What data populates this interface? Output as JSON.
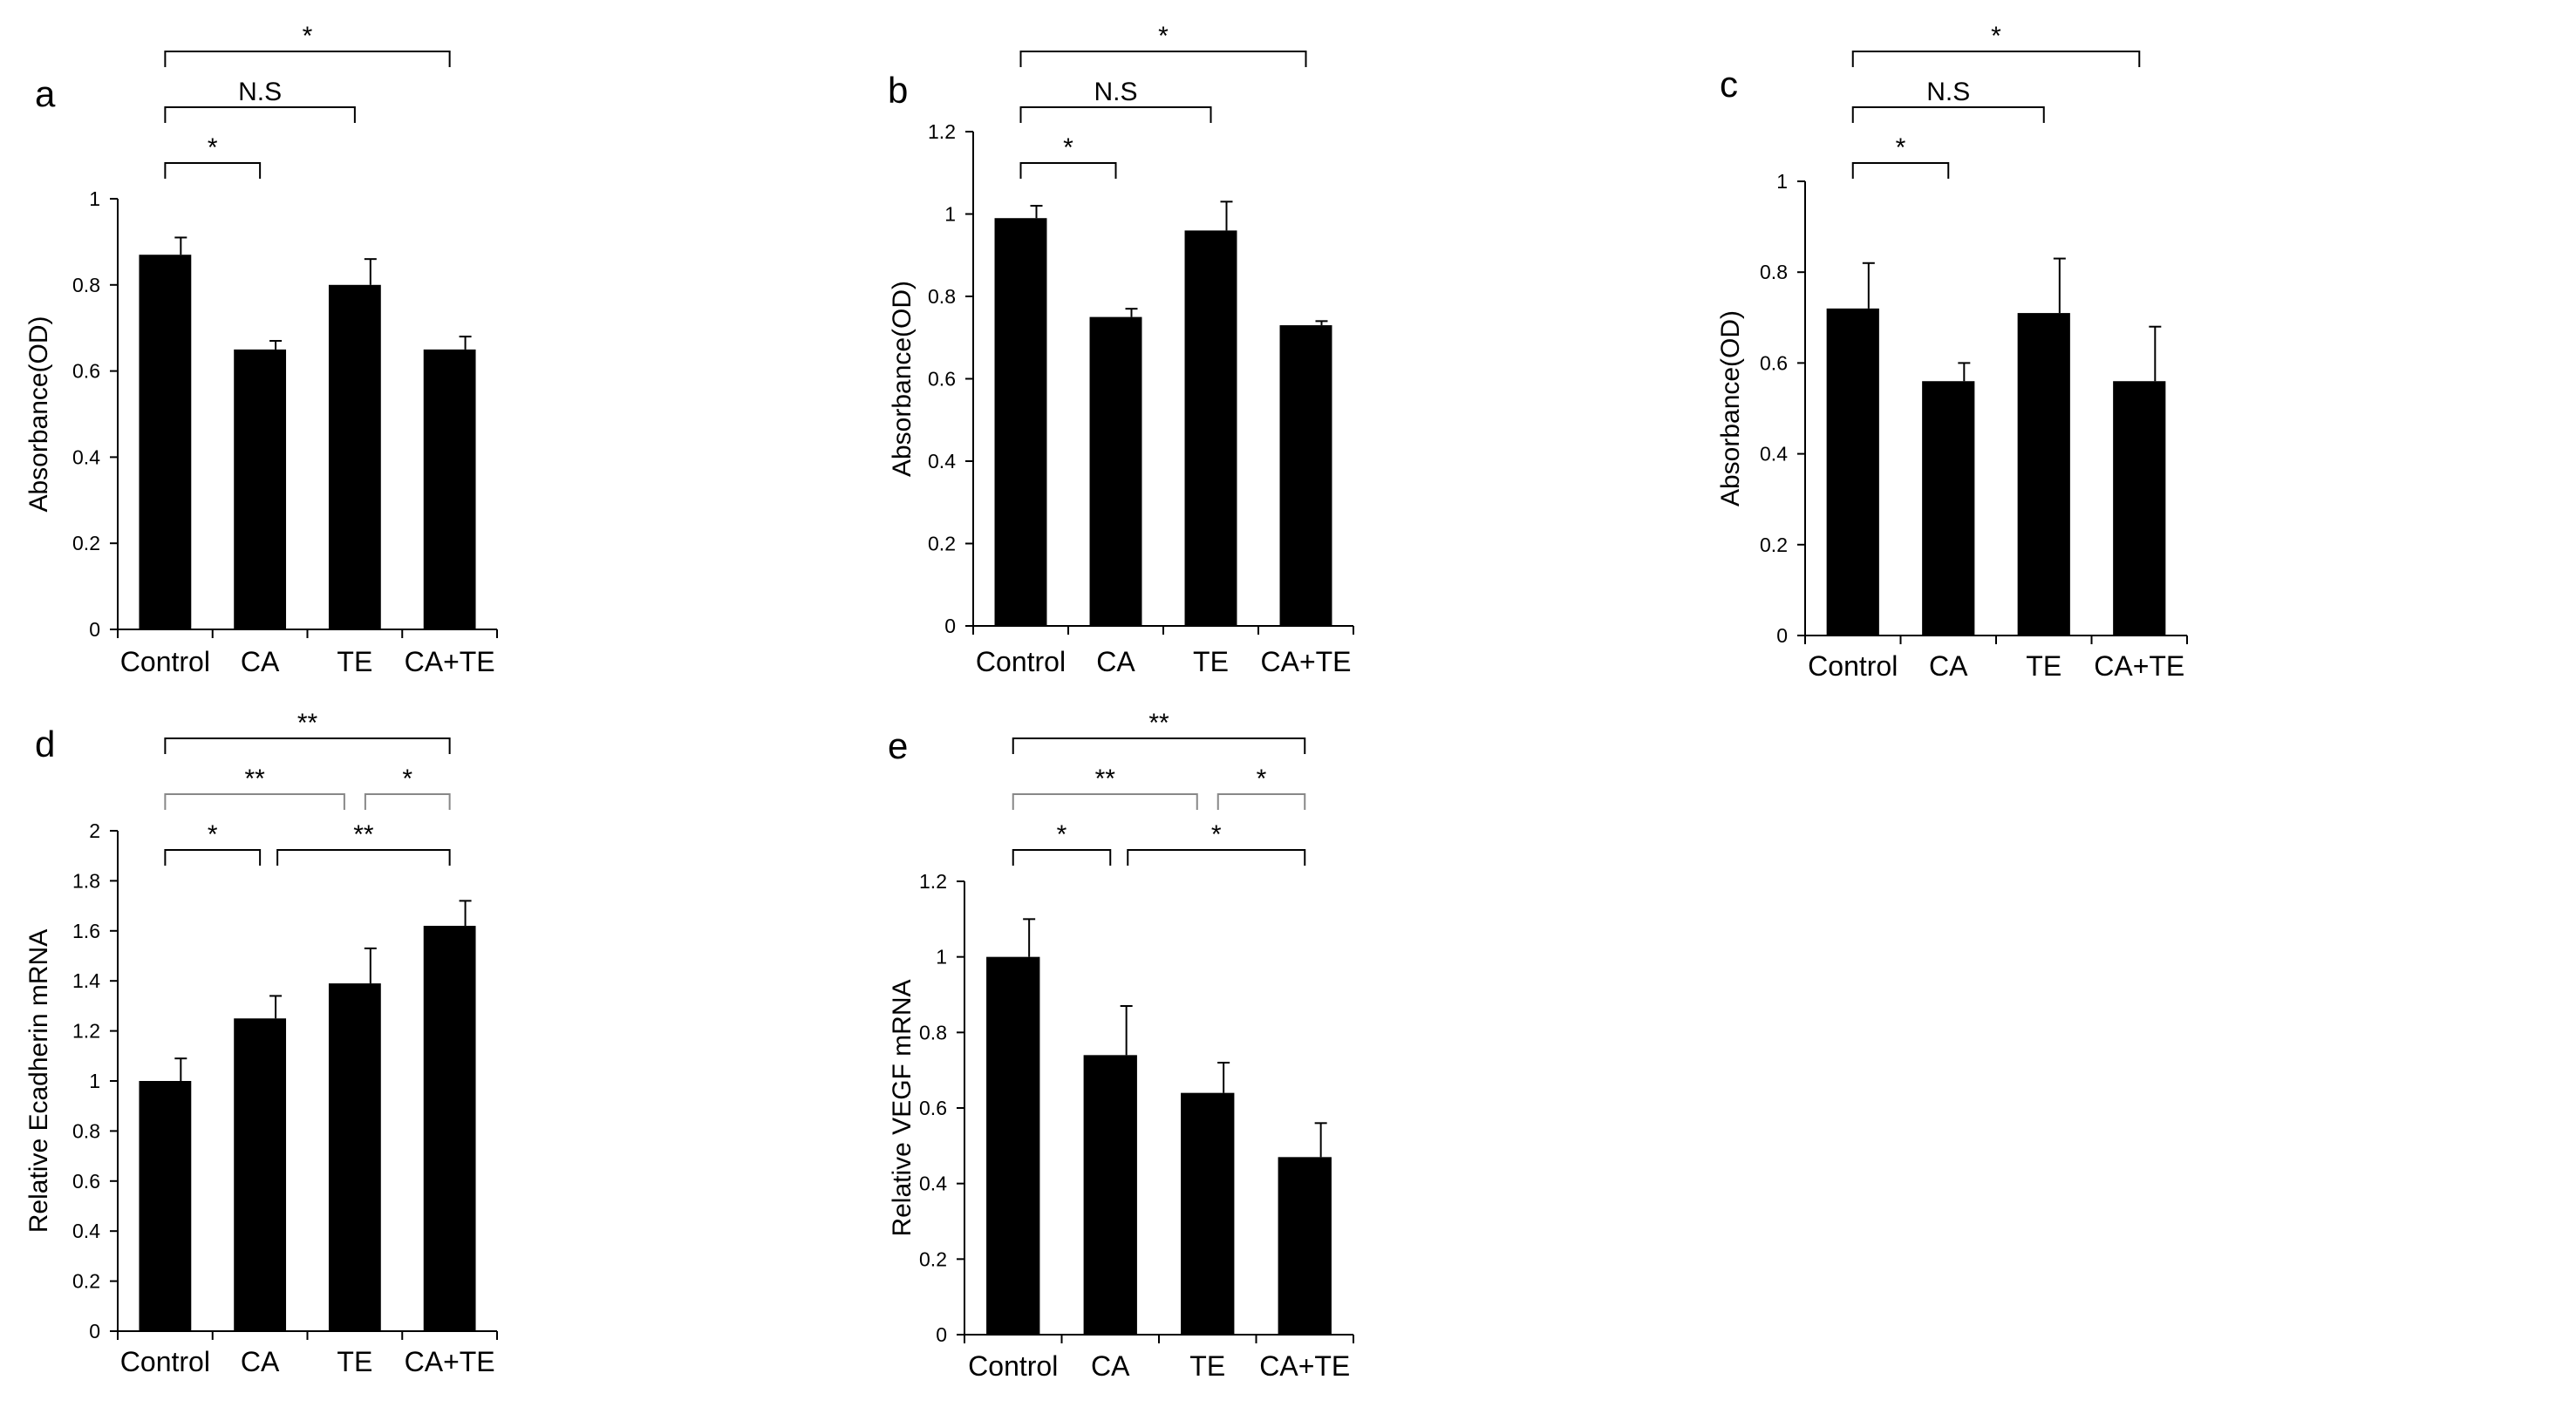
{
  "chart_data": [
    {
      "panel": "a",
      "type": "bar",
      "categories": [
        "Control",
        "CA",
        "TE",
        "CA+TE"
      ],
      "values": [
        0.87,
        0.65,
        0.8,
        0.65
      ],
      "errors": [
        0.04,
        0.02,
        0.06,
        0.03
      ],
      "ylabel": "Absorbance(OD)",
      "ylim": [
        0,
        1
      ],
      "yticks": [
        0,
        0.2,
        0.4,
        0.6,
        0.8,
        1
      ],
      "ytick_labels": [
        "0",
        "0.2",
        "0.4",
        "0.6",
        "0.8",
        "1"
      ],
      "significance": [
        {
          "from": 0,
          "to": 3,
          "label": "*",
          "level": 3,
          "color": "#000000"
        },
        {
          "from": 0,
          "to": 2,
          "label": "N.S",
          "level": 2,
          "color": "#000000"
        },
        {
          "from": 0,
          "to": 1,
          "label": "*",
          "level": 1,
          "color": "#000000"
        }
      ]
    },
    {
      "panel": "b",
      "type": "bar",
      "categories": [
        "Control",
        "CA",
        "TE",
        "CA+TE"
      ],
      "values": [
        0.99,
        0.75,
        0.96,
        0.73
      ],
      "errors": [
        0.03,
        0.02,
        0.07,
        0.01
      ],
      "ylabel": "Absorbance(OD)",
      "ylim": [
        0,
        1.2
      ],
      "yticks": [
        0,
        0.2,
        0.4,
        0.6,
        0.8,
        1,
        1.2
      ],
      "ytick_labels": [
        "0",
        "0.2",
        "0.4",
        "0.6",
        "0.8",
        "1",
        "1.2"
      ],
      "significance": [
        {
          "from": 0,
          "to": 3,
          "label": "*",
          "level": 3,
          "color": "#000000"
        },
        {
          "from": 0,
          "to": 2,
          "label": "N.S",
          "level": 2,
          "color": "#000000"
        },
        {
          "from": 0,
          "to": 1,
          "label": "*",
          "level": 1,
          "color": "#000000"
        }
      ]
    },
    {
      "panel": "c",
      "type": "bar",
      "categories": [
        "Control",
        "CA",
        "TE",
        "CA+TE"
      ],
      "values": [
        0.72,
        0.56,
        0.71,
        0.56
      ],
      "errors": [
        0.1,
        0.04,
        0.12,
        0.12
      ],
      "ylabel": "Absorbance(OD)",
      "ylim": [
        0,
        1
      ],
      "yticks": [
        0,
        0.2,
        0.4,
        0.6,
        0.8,
        1
      ],
      "ytick_labels": [
        "0",
        "0.2",
        "0.4",
        "0.6",
        "0.8",
        "1"
      ],
      "significance": [
        {
          "from": 0,
          "to": 3,
          "label": "*",
          "level": 3,
          "color": "#000000"
        },
        {
          "from": 0,
          "to": 2,
          "label": "N.S",
          "level": 2,
          "color": "#000000"
        },
        {
          "from": 0,
          "to": 1,
          "label": "*",
          "level": 1,
          "color": "#000000"
        }
      ]
    },
    {
      "panel": "d",
      "type": "bar",
      "categories": [
        "Control",
        "CA",
        "TE",
        "CA+TE"
      ],
      "values": [
        1.0,
        1.25,
        1.39,
        1.62
      ],
      "errors": [
        0.09,
        0.09,
        0.14,
        0.1
      ],
      "ylabel": "Relative Ecadherin mRNA",
      "ylim": [
        0,
        2
      ],
      "yticks": [
        0,
        0.2,
        0.4,
        0.6,
        0.8,
        1,
        1.2,
        1.4,
        1.6,
        1.8,
        2
      ],
      "ytick_labels": [
        "0",
        "0.2",
        "0.4",
        "0.6",
        "0.8",
        "1",
        "1.2",
        "1.4",
        "1.6",
        "1.8",
        "2"
      ],
      "significance": [
        {
          "from": 0,
          "to": 3,
          "label": "**",
          "level": 3,
          "color": "#000000"
        },
        {
          "from": 0,
          "to": 2,
          "label": "**",
          "level": 2,
          "color": "#888888"
        },
        {
          "from": 2,
          "to": 3,
          "label": "*",
          "level": 2,
          "color": "#888888"
        },
        {
          "from": 0,
          "to": 1,
          "label": "*",
          "level": 1,
          "color": "#000000"
        },
        {
          "from": 1,
          "to": 3,
          "label": "**",
          "level": 1,
          "color": "#000000"
        }
      ]
    },
    {
      "panel": "e",
      "type": "bar",
      "categories": [
        "Control",
        "CA",
        "TE",
        "CA+TE"
      ],
      "values": [
        1.0,
        0.74,
        0.64,
        0.47
      ],
      "errors": [
        0.1,
        0.13,
        0.08,
        0.09
      ],
      "ylabel": "Relative VEGF mRNA",
      "ylim": [
        0,
        1.2
      ],
      "yticks": [
        0,
        0.2,
        0.4,
        0.6,
        0.8,
        1,
        1.2
      ],
      "ytick_labels": [
        "0",
        "0.2",
        "0.4",
        "0.6",
        "0.8",
        "1",
        "1.2"
      ],
      "significance": [
        {
          "from": 0,
          "to": 3,
          "label": "**",
          "level": 3,
          "color": "#000000"
        },
        {
          "from": 0,
          "to": 2,
          "label": "**",
          "level": 2,
          "color": "#888888"
        },
        {
          "from": 2,
          "to": 3,
          "label": "*",
          "level": 2,
          "color": "#888888"
        },
        {
          "from": 0,
          "to": 1,
          "label": "*",
          "level": 1,
          "color": "#000000"
        },
        {
          "from": 1,
          "to": 3,
          "label": "*",
          "level": 1,
          "color": "#000000"
        }
      ]
    }
  ]
}
